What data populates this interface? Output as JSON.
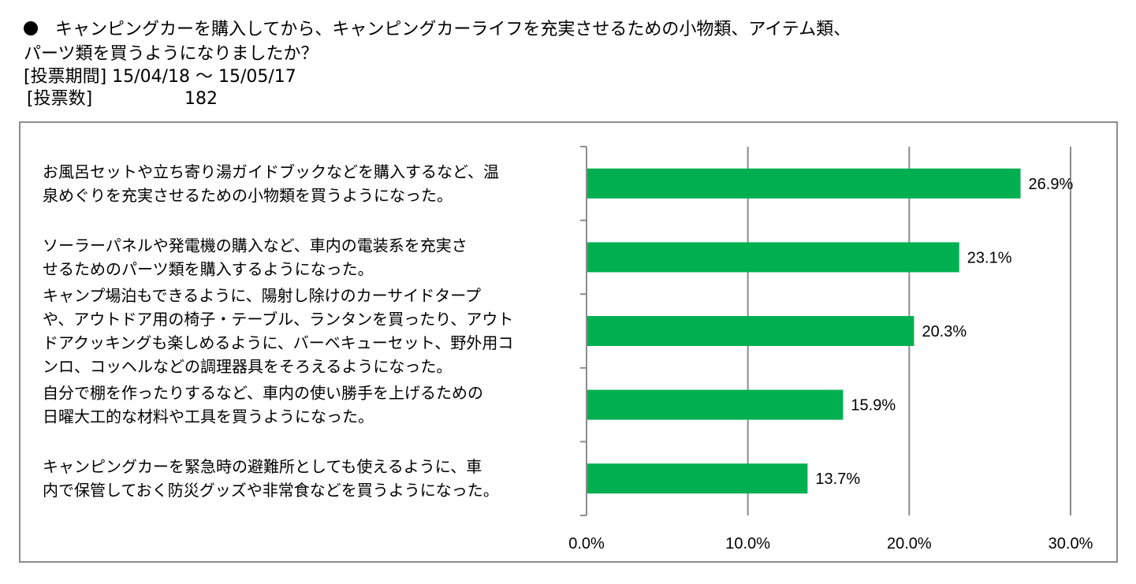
{
  "header": {
    "question_line1": "キャンピングカーを購入してから、キャンピングカーライフを充実させるための小物類、アイテム類、",
    "question_line2": "パーツ類を買うようになりましたか？",
    "period": "[投票期間] 15/04/18 ～ 15/05/17",
    "votes_label": "[投票数]",
    "votes_value": "182"
  },
  "chart_data": {
    "type": "bar",
    "orientation": "horizontal",
    "categories": [
      [
        "お風呂セットや立ち寄り湯ガイドブックなどを購入するなど、温",
        "泉めぐりを充実させるための小物類を買うようになった。"
      ],
      [
        "ソーラーパネルや発電機の購入など、車内の電装系を充実さ",
        "せるためのパーツ類を購入するようになった。"
      ],
      [
        "キャンプ場泊もできるように、陽射し除けのカーサイドタープ",
        "や、アウトドア用の椅子・テーブル、ランタンを買ったり、アウト",
        "ドアクッキングも楽しめるように、バーベキューセット、野外用コ",
        "ンロ、コッヘルなどの調理器具をそろえるようになった。"
      ],
      [
        "自分で棚を作ったりするなど、車内の使い勝手を上げるための",
        "日曜大工的な材料や工具を買うようになった。"
      ],
      [
        "キャンピングカーを緊急時の避難所としても使えるように、車",
        "内で保管しておく防災グッズや非常食などを買うようになった。"
      ]
    ],
    "values": [
      26.9,
      23.1,
      20.3,
      15.9,
      13.7
    ],
    "value_labels": [
      "26.9%",
      "23.1%",
      "20.3%",
      "15.9%",
      "13.7%"
    ],
    "xlim": [
      0,
      30
    ],
    "xticks": [
      "0.0%",
      "10.0%",
      "20.0%",
      "30.0%"
    ],
    "grid": true,
    "bar_color": "#00b050",
    "grid_color": "#8c8c8c"
  }
}
